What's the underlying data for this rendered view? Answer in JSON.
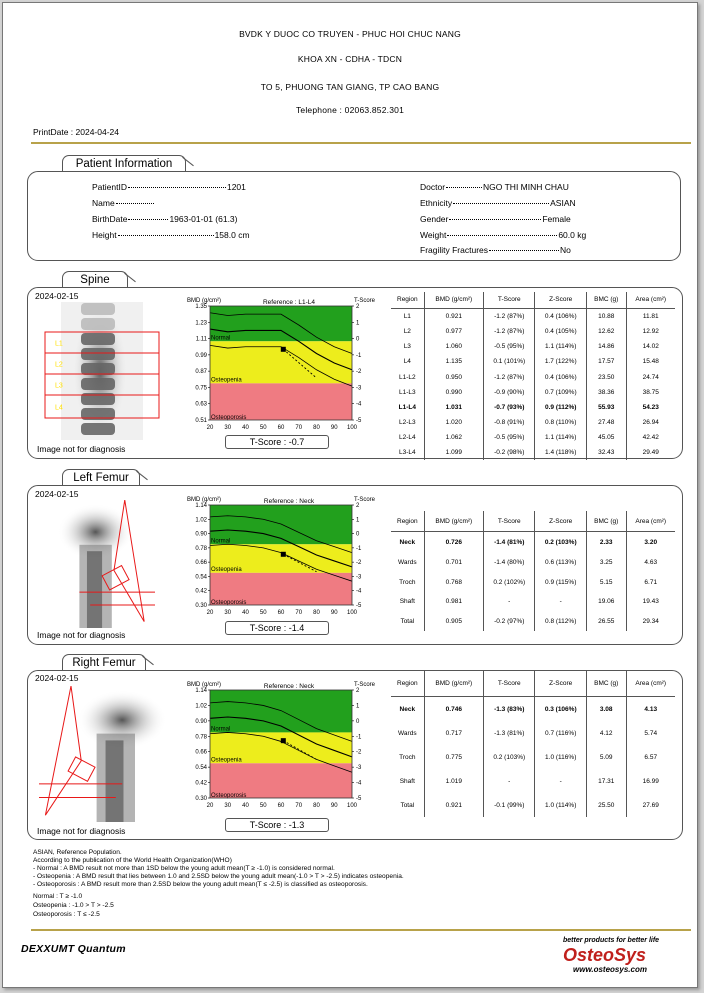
{
  "header": {
    "hospital": "BVDK Y DUOC CO TRUYEN - PHUC HOI CHUC NANG",
    "department": "KHOA XN - CDHA - TDCN",
    "address": "TO 5, PHUONG TAN GIANG, TP CAO BANG",
    "telephone": "Telephone : 02063.852.301"
  },
  "print_date": "PrintDate : 2024-04-24",
  "patient": {
    "title": "Patient Information",
    "patient_id_label": "PatientID",
    "patient_id": "1201",
    "name_label": "Name",
    "name": "",
    "birthdate_label": "BirthDate",
    "birthdate": "1963-01-01 (61.3)",
    "height_label": "Height",
    "height": "158.0 cm",
    "doctor_label": "Doctor",
    "doctor": "NGO THI MINH CHAU",
    "ethnicity_label": "Ethnicity",
    "ethnicity": "ASIAN",
    "gender_label": "Gender",
    "gender": "Female",
    "weight_label": "Weight",
    "weight": "60.0 kg",
    "fragility_label": "Fragility Fractures",
    "fragility": "No"
  },
  "colors": {
    "green": "#22a01d",
    "yellow": "#eded1c",
    "pink": "#ef7b82",
    "scan_roi": "#e81818",
    "gold": "#b8a24a",
    "logo_red": "#c0201c"
  },
  "sections": [
    {
      "title": "Spine",
      "date": "2024-02-15",
      "diag": "Image not for diagnosis",
      "roi": "spine",
      "roi_labels": [
        "L1",
        "L2",
        "L3",
        "L4"
      ],
      "chart": {
        "bmd_label": "BMD (g/cm²)",
        "reference": "Reference : L1-L4",
        "tscore_axis": "T-Score",
        "y_ticks": [
          "1.35",
          "1.23",
          "1.11",
          "0.99",
          "0.87",
          "0.75",
          "0.63",
          "0.51"
        ],
        "ylim": [
          0.51,
          1.35
        ],
        "t_ticks": [
          "2",
          "1",
          "0",
          "-1",
          "-2",
          "-3",
          "-4",
          "-5"
        ],
        "x_ticks": [
          "20",
          "30",
          "40",
          "50",
          "60",
          "70",
          "80",
          "90",
          "100"
        ],
        "zones": [
          "Normal",
          "Osteopenia",
          "Osteoporosis"
        ],
        "green_min": 1.09,
        "yellow_min": 0.78,
        "ref_mean": [
          1.18,
          1.16,
          1.17,
          1.17,
          1.17,
          1.09,
          1.0,
          0.93,
          0.88
        ],
        "sd": 0.12,
        "point": {
          "age": 61.3,
          "bmd": 1.031
        },
        "trend": [
          [
            61.3,
            1.031
          ],
          [
            80,
            0.82
          ]
        ],
        "t_label": "T-Score : -0.7"
      },
      "table": {
        "headers": [
          "Region",
          "BMD (g/cm²)",
          "T-Score",
          "Z-Score",
          "BMC (g)",
          "Area (cm²)"
        ],
        "rows": [
          [
            "L1",
            "0.921",
            "-1.2 (87%)",
            "0.4 (106%)",
            "10.88",
            "11.81"
          ],
          [
            "L2",
            "0.977",
            "-1.2 (87%)",
            "0.4 (105%)",
            "12.62",
            "12.92"
          ],
          [
            "L3",
            "1.060",
            "-0.5 (95%)",
            "1.1 (114%)",
            "14.86",
            "14.02"
          ],
          [
            "L4",
            "1.135",
            "0.1 (101%)",
            "1.7 (122%)",
            "17.57",
            "15.48"
          ],
          [
            "L1-L2",
            "0.950",
            "-1.2 (87%)",
            "0.4 (106%)",
            "23.50",
            "24.74"
          ],
          [
            "L1-L3",
            "0.990",
            "-0.9 (90%)",
            "0.7 (109%)",
            "38.36",
            "38.75"
          ],
          [
            "L1-L4",
            "1.031",
            "-0.7 (93%)",
            "0.9 (112%)",
            "55.93",
            "54.23"
          ],
          [
            "L2-L3",
            "1.020",
            "-0.8 (91%)",
            "0.8 (110%)",
            "27.48",
            "26.94"
          ],
          [
            "L2-L4",
            "1.062",
            "-0.5 (95%)",
            "1.1 (114%)",
            "45.05",
            "42.42"
          ],
          [
            "L3-L4",
            "1.099",
            "-0.2 (98%)",
            "1.4 (118%)",
            "32.43",
            "29.49"
          ]
        ],
        "bold": 6
      }
    },
    {
      "title": "Left Femur",
      "date": "2024-02-15",
      "diag": "Image not for diagnosis",
      "roi": "femur",
      "chart": {
        "bmd_label": "BMD (g/cm²)",
        "reference": "Reference : Neck",
        "tscore_axis": "T-Score",
        "y_ticks": [
          "1.14",
          "1.02",
          "0.90",
          "0.78",
          "0.66",
          "0.54",
          "0.42",
          "0.30"
        ],
        "ylim": [
          0.3,
          1.14
        ],
        "t_ticks": [
          "2",
          "1",
          "0",
          "-1",
          "-2",
          "-3",
          "-4",
          "-5"
        ],
        "x_ticks": [
          "20",
          "30",
          "40",
          "50",
          "60",
          "70",
          "80",
          "90",
          "100"
        ],
        "zones": [
          "Normal",
          "Osteopenia",
          "Osteoporosis"
        ],
        "green_min": 0.81,
        "yellow_min": 0.57,
        "ref_mean": [
          0.92,
          0.93,
          0.92,
          0.9,
          0.86,
          0.79,
          0.72,
          0.67,
          0.62
        ],
        "sd": 0.12,
        "point": {
          "age": 61.3,
          "bmd": 0.726
        },
        "trend": [
          [
            61.3,
            0.726
          ],
          [
            80,
            0.58
          ]
        ],
        "t_label": "T-Score : -1.4"
      },
      "table": {
        "headers": [
          "Region",
          "BMD (g/cm²)",
          "T-Score",
          "Z-Score",
          "BMC (g)",
          "Area (cm²)"
        ],
        "rows": [
          [
            "Neck",
            "0.726",
            "-1.4 (81%)",
            "0.2 (103%)",
            "2.33",
            "3.20"
          ],
          [
            "Wards",
            "0.701",
            "-1.4 (80%)",
            "0.6 (113%)",
            "3.25",
            "4.63"
          ],
          [
            "Troch",
            "0.768",
            "0.2 (102%)",
            "0.9 (115%)",
            "5.15",
            "6.71"
          ],
          [
            "Shaft",
            "0.981",
            "-",
            "-",
            "19.06",
            "19.43"
          ],
          [
            "Total",
            "0.905",
            "-0.2 (97%)",
            "0.8 (112%)",
            "26.55",
            "29.34"
          ]
        ],
        "bold": 0
      }
    },
    {
      "title": "Right Femur",
      "date": "2024-02-15",
      "diag": "Image not for diagnosis",
      "roi": "femur-r",
      "chart": {
        "bmd_label": "BMD (g/cm²)",
        "reference": "Reference : Neck",
        "tscore_axis": "T-Score",
        "y_ticks": [
          "1.14",
          "1.02",
          "0.90",
          "0.78",
          "0.66",
          "0.54",
          "0.42",
          "0.30"
        ],
        "ylim": [
          0.3,
          1.14
        ],
        "t_ticks": [
          "2",
          "1",
          "0",
          "-1",
          "-2",
          "-3",
          "-4",
          "-5"
        ],
        "x_ticks": [
          "20",
          "30",
          "40",
          "50",
          "60",
          "70",
          "80",
          "90",
          "100"
        ],
        "zones": [
          "Normal",
          "Osteopenia",
          "Osteoporosis"
        ],
        "green_min": 0.81,
        "yellow_min": 0.57,
        "ref_mean": [
          0.92,
          0.93,
          0.92,
          0.9,
          0.86,
          0.79,
          0.72,
          0.67,
          0.62
        ],
        "sd": 0.12,
        "point": {
          "age": 61.3,
          "bmd": 0.746
        },
        "trend": [
          [
            61.3,
            0.746
          ],
          [
            80,
            0.6
          ]
        ],
        "t_label": "T-Score : -1.3"
      },
      "table": {
        "headers": [
          "Region",
          "BMD (g/cm²)",
          "T-Score",
          "Z-Score",
          "BMC (g)",
          "Area (cm²)"
        ],
        "rows": [
          [
            "Neck",
            "0.746",
            "-1.3 (83%)",
            "0.3 (106%)",
            "3.08",
            "4.13"
          ],
          [
            "Wards",
            "0.717",
            "-1.3 (81%)",
            "0.7 (116%)",
            "4.12",
            "5.74"
          ],
          [
            "Troch",
            "0.775",
            "0.2 (103%)",
            "1.0 (116%)",
            "5.09",
            "6.57"
          ],
          [
            "Shaft",
            "1.019",
            "-",
            "-",
            "17.31",
            "16.99"
          ],
          [
            "Total",
            "0.921",
            "-0.1 (99%)",
            "1.0 (114%)",
            "25.50",
            "27.69"
          ]
        ],
        "bold": 0
      }
    }
  ],
  "footnotes": [
    "ASIAN, Reference Population.",
    "According to the publication of the World Health Organization(WHO)",
    "- Normal : A BMD result not more than 1SD below the young adult mean(T ≥ -1.0) is considered normal.",
    "- Osteopenia : A BMD result that lies between 1.0 and 2.5SD below the young adult mean(-1.0 > T > -2.5) indicates osteopenia.",
    "- Osteoporosis : A BMD result more than 2.5SD below the young adult mean(T ≤ -2.5) is classified as osteoporosis.",
    "Normal : T ≥ -1.0",
    "Osteopenia : -1.0 > T > -2.5",
    "Osteoporosis : T ≤ -2.5"
  ],
  "brand": {
    "device": "DEXXUMT Quantum",
    "slogan": "better products for better life",
    "company": "OsteoSys",
    "url": "www.osteosys.com"
  }
}
